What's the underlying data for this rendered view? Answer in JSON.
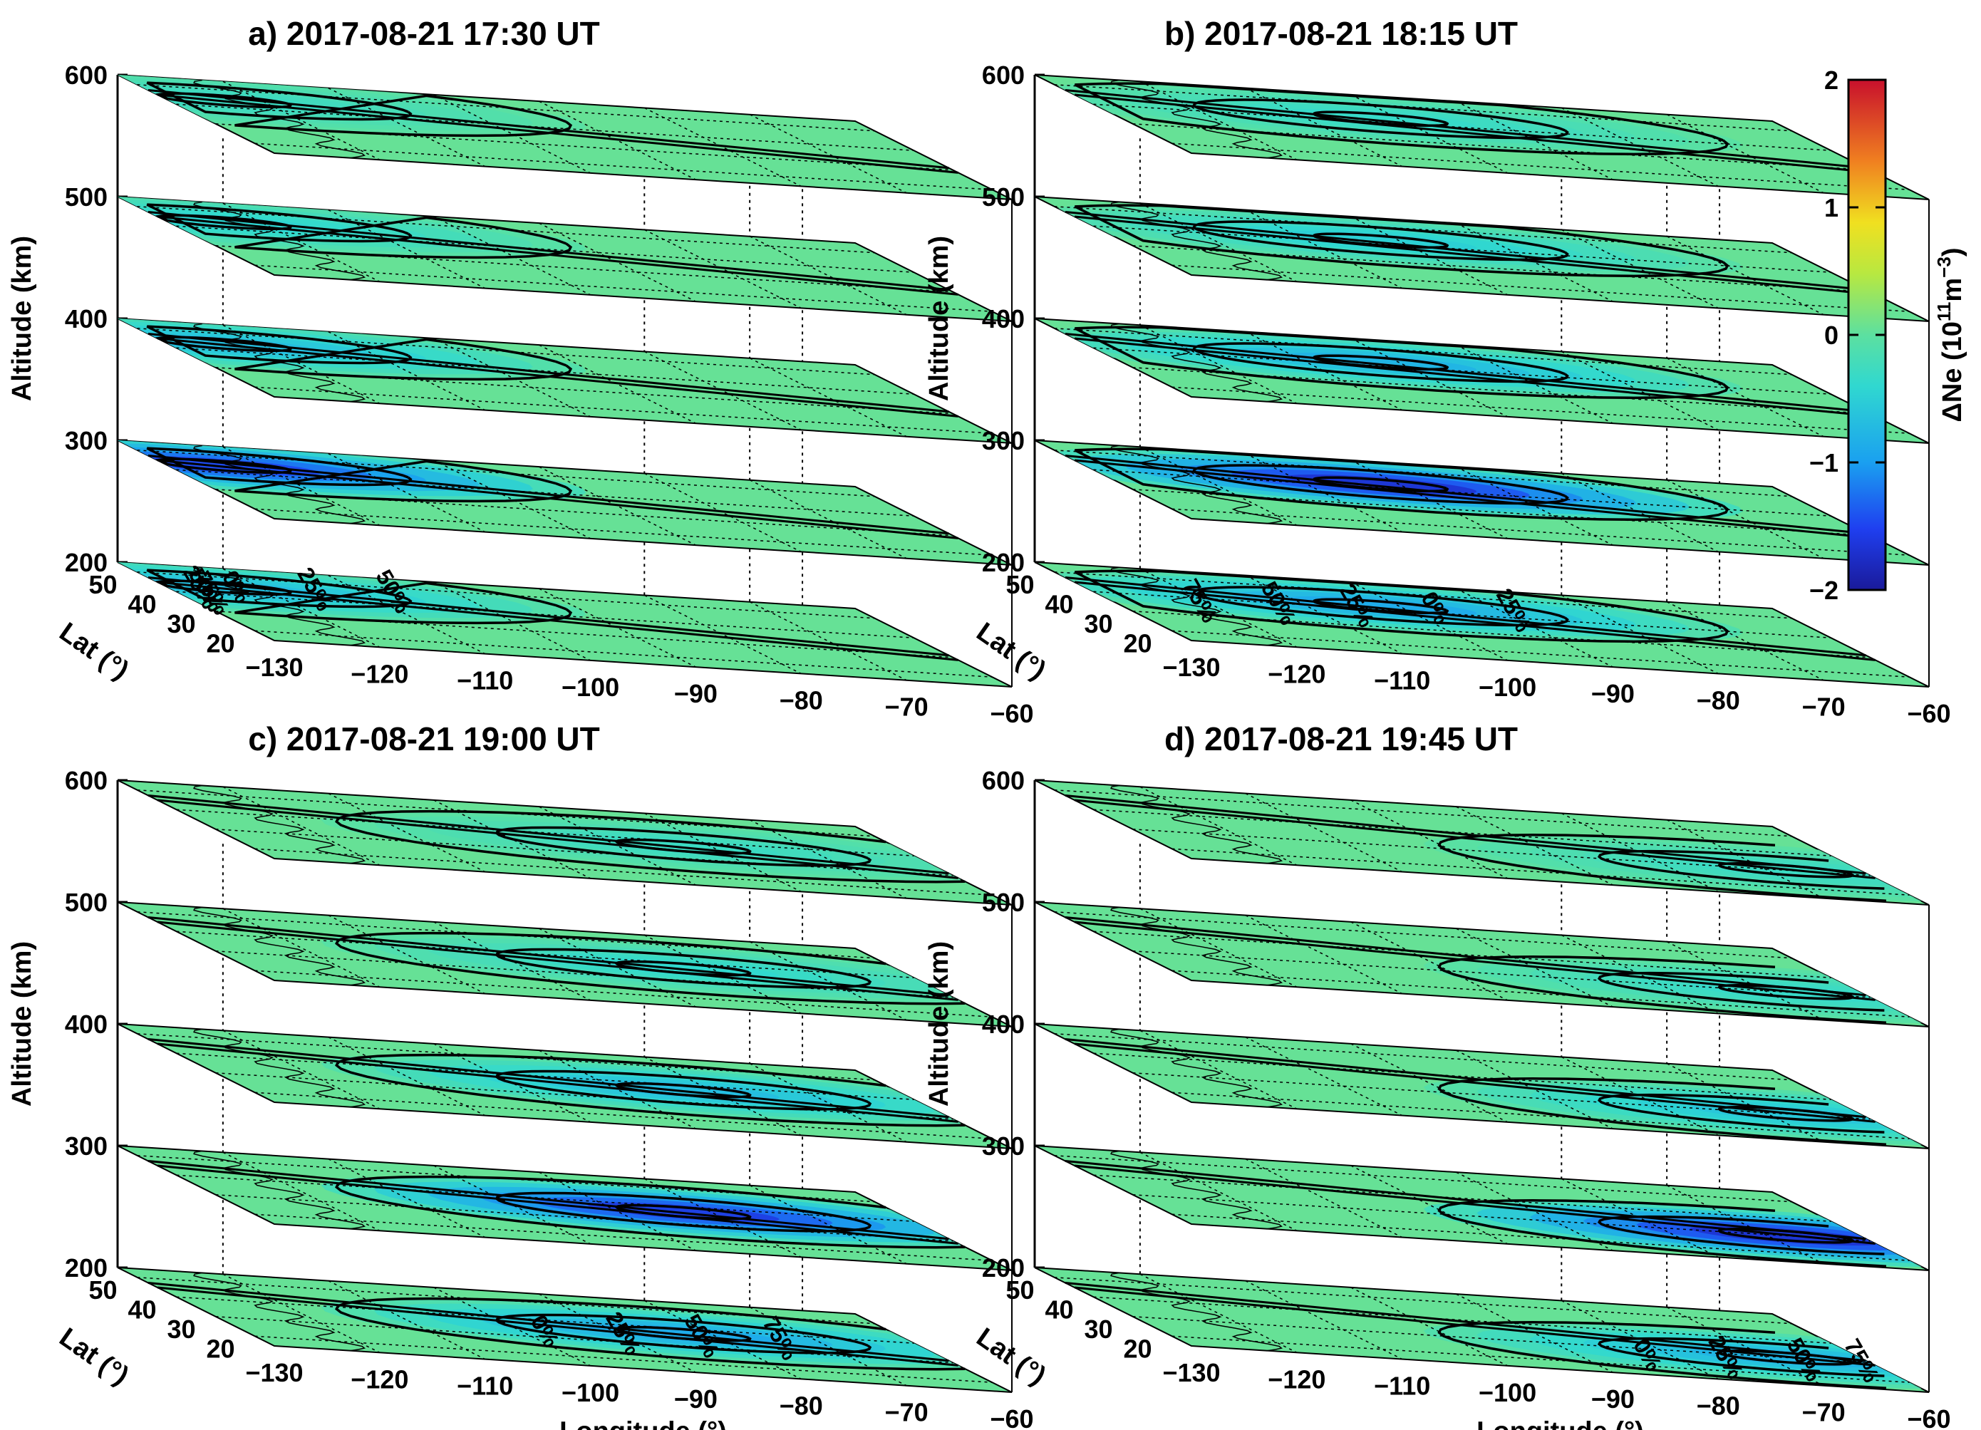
{
  "chart_data": {
    "type": "heatmap",
    "description_units": {
      "colorbar_label": "ΔNe (10",
      "colorbar_exp1": "11",
      "colorbar_mid": "m",
      "colorbar_exp2": "−3",
      "colorbar_close": ")"
    },
    "colorbar": {
      "min": -2,
      "max": 2,
      "ticks": [
        "2",
        "1",
        "0",
        "−1",
        "−2"
      ],
      "tick_values": [
        2,
        1,
        0,
        -1,
        -2
      ],
      "colormap": "rainbow"
    },
    "axes": {
      "ylabel": "Altitude (km)",
      "yticks": [
        "600",
        "500",
        "400",
        "300",
        "200"
      ],
      "altitudes_km": [
        600,
        500,
        400,
        300,
        200
      ],
      "lat_label": "Lat (°)",
      "lat_ticks": [
        "50",
        "40",
        "30",
        "20"
      ],
      "lon_label": "Longitude (°)",
      "lon_ticks": [
        "−130",
        "−120",
        "−110",
        "−100",
        "−90",
        "−80",
        "−70",
        "−60"
      ],
      "lon_range": [
        -130,
        -60
      ],
      "lat_range": [
        15,
        55
      ]
    },
    "panels": [
      {
        "title": "a) 2017-08-21 17:30 UT",
        "totality_center_lon": -124,
        "totality_center_lat": 44,
        "contour_labels": [
          "75%",
          "50%",
          "25%",
          "0%",
          "25%",
          "50%"
        ],
        "slice_min_dNe": [
          -0.3,
          -0.45,
          -0.7,
          -1.5,
          -0.7
        ]
      },
      {
        "title": "b) 2017-08-21 18:15 UT",
        "totality_center_lon": -102,
        "totality_center_lat": 42,
        "contour_labels": [
          "75%",
          "50%",
          "25%",
          "0%",
          "25%"
        ],
        "slice_min_dNe": [
          -0.35,
          -0.5,
          -0.8,
          -1.7,
          -0.9
        ]
      },
      {
        "title": "c) 2017-08-21 19:00 UT",
        "totality_center_lon": -83,
        "totality_center_lat": 37,
        "contour_labels": [
          "0%",
          "25%",
          "50%",
          "75%"
        ],
        "slice_min_dNe": [
          -0.3,
          -0.4,
          -0.7,
          -1.6,
          -0.9
        ]
      },
      {
        "title": "d) 2017-08-21 19:45 UT",
        "totality_center_lon": -68,
        "totality_center_lat": 30,
        "contour_labels": [
          "0%",
          "25%",
          "50%",
          "75%"
        ],
        "slice_min_dNe": [
          -0.3,
          -0.35,
          -0.6,
          -1.7,
          -0.8
        ]
      }
    ]
  }
}
